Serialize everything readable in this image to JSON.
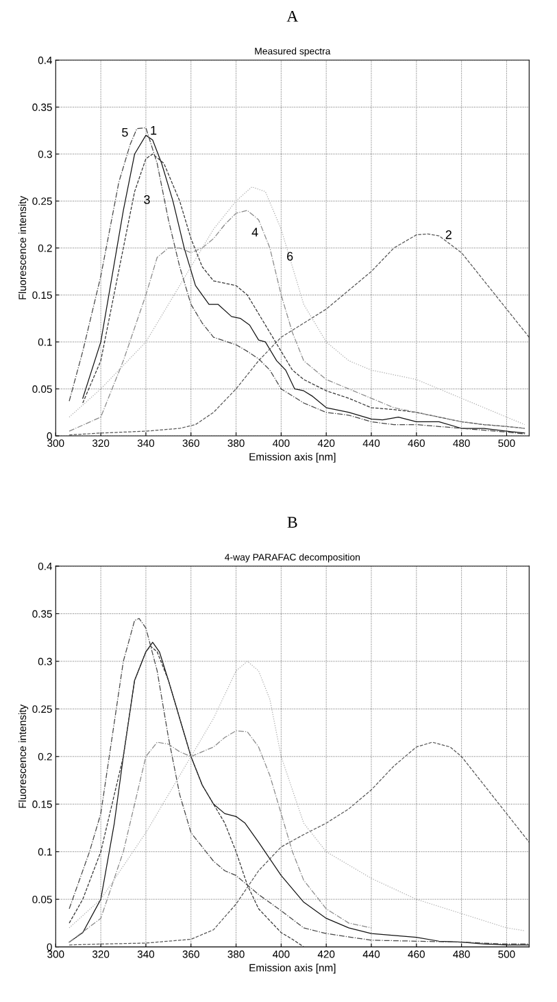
{
  "chart_data": [
    {
      "type": "line",
      "title": "Measured spectra",
      "xlabel": "Emission axis [nm]",
      "ylabel": "Fluorescence intensity",
      "xlim": [
        300,
        510
      ],
      "ylim": [
        0,
        0.4
      ],
      "xticks": [
        300,
        320,
        340,
        360,
        380,
        400,
        420,
        440,
        460,
        480,
        500
      ],
      "yticks": [
        0,
        0.05,
        0.1,
        0.15,
        0.2,
        0.25,
        0.3,
        0.35,
        0.4
      ],
      "grid": true,
      "annotations": [
        "A"
      ],
      "series": [
        {
          "name": "1",
          "color": "#111111",
          "line_style": "solid",
          "x": [
            312,
            320,
            330,
            335,
            340,
            343,
            347,
            352,
            357,
            362,
            365,
            368,
            372,
            378,
            382,
            386,
            390,
            393,
            398,
            402,
            406,
            410,
            414,
            420,
            430,
            440,
            445,
            452,
            460,
            470,
            480,
            490,
            500,
            508
          ],
          "values": [
            0.04,
            0.1,
            0.24,
            0.3,
            0.32,
            0.315,
            0.29,
            0.25,
            0.2,
            0.16,
            0.15,
            0.14,
            0.14,
            0.127,
            0.125,
            0.118,
            0.102,
            0.1,
            0.08,
            0.07,
            0.05,
            0.048,
            0.042,
            0.03,
            0.025,
            0.018,
            0.017,
            0.02,
            0.015,
            0.015,
            0.008,
            0.008,
            0.005,
            0.003
          ]
        },
        {
          "name": "2",
          "color": "#555555",
          "line_style": "dashed",
          "x": [
            306,
            320,
            340,
            355,
            362,
            370,
            380,
            390,
            400,
            410,
            420,
            430,
            440,
            450,
            460,
            465,
            470,
            480,
            490,
            500,
            510
          ],
          "values": [
            0.001,
            0.003,
            0.005,
            0.008,
            0.012,
            0.025,
            0.05,
            0.08,
            0.105,
            0.12,
            0.135,
            0.155,
            0.175,
            0.2,
            0.214,
            0.215,
            0.213,
            0.195,
            0.165,
            0.135,
            0.105
          ]
        },
        {
          "name": "3",
          "color": "#333333",
          "line_style": "dashed",
          "x": [
            312,
            320,
            330,
            335,
            340,
            343,
            348,
            355,
            360,
            365,
            370,
            380,
            385,
            390,
            400,
            405,
            410,
            420,
            430,
            440,
            450,
            460,
            470,
            480,
            490,
            500,
            508
          ],
          "values": [
            0.035,
            0.08,
            0.2,
            0.26,
            0.295,
            0.3,
            0.29,
            0.25,
            0.21,
            0.18,
            0.165,
            0.16,
            0.15,
            0.13,
            0.09,
            0.07,
            0.06,
            0.048,
            0.04,
            0.03,
            0.028,
            0.025,
            0.02,
            0.015,
            0.012,
            0.01,
            0.008
          ]
        },
        {
          "name": "4",
          "color": "#888888",
          "line_style": "dashdot",
          "x": [
            306,
            320,
            330,
            340,
            345,
            350,
            355,
            360,
            365,
            370,
            375,
            380,
            385,
            390,
            395,
            400,
            405,
            410,
            420,
            430,
            440,
            450,
            460,
            470,
            480,
            490,
            500,
            508
          ],
          "values": [
            0.005,
            0.02,
            0.08,
            0.15,
            0.19,
            0.2,
            0.2,
            0.195,
            0.2,
            0.21,
            0.225,
            0.237,
            0.24,
            0.23,
            0.2,
            0.15,
            0.11,
            0.08,
            0.06,
            0.05,
            0.04,
            0.03,
            0.025,
            0.02,
            0.015,
            0.012,
            0.01,
            0.008
          ]
        },
        {
          "name": "5",
          "color": "#444444",
          "line_style": "dashdot",
          "x": [
            306,
            312,
            320,
            328,
            333,
            336,
            340,
            345,
            350,
            355,
            360,
            365,
            370,
            380,
            385,
            390,
            395,
            400,
            410,
            420,
            430,
            440,
            450,
            460,
            470,
            480,
            490,
            500,
            508
          ],
          "values": [
            0.037,
            0.09,
            0.17,
            0.27,
            0.31,
            0.327,
            0.328,
            0.29,
            0.23,
            0.18,
            0.14,
            0.12,
            0.105,
            0.097,
            0.09,
            0.082,
            0.07,
            0.05,
            0.035,
            0.025,
            0.022,
            0.015,
            0.012,
            0.012,
            0.01,
            0.008,
            0.006,
            0.004,
            0.002
          ]
        },
        {
          "name": "6",
          "color": "#aaaaaa",
          "line_style": "dotted",
          "x": [
            306,
            320,
            340,
            350,
            360,
            370,
            380,
            387,
            393,
            400,
            405,
            410,
            420,
            430,
            440,
            450,
            460,
            470,
            480,
            490,
            500,
            508
          ],
          "values": [
            0.02,
            0.05,
            0.1,
            0.14,
            0.18,
            0.22,
            0.25,
            0.265,
            0.26,
            0.22,
            0.18,
            0.14,
            0.1,
            0.08,
            0.07,
            0.065,
            0.06,
            0.05,
            0.04,
            0.03,
            0.02,
            0.012
          ]
        }
      ]
    },
    {
      "type": "line",
      "title": "4-way PARAFAC decomposition",
      "xlabel": "Emission axis [nm]",
      "ylabel": "Fluorescence intensity",
      "xlim": [
        300,
        510
      ],
      "ylim": [
        0,
        0.4
      ],
      "xticks": [
        300,
        320,
        340,
        360,
        380,
        400,
        420,
        440,
        460,
        480,
        500
      ],
      "yticks": [
        0,
        0.05,
        0.1,
        0.15,
        0.2,
        0.25,
        0.3,
        0.35,
        0.4
      ],
      "grid": true,
      "annotations": [
        "B"
      ],
      "series": [
        {
          "color": "#111111",
          "line_style": "solid",
          "x": [
            306,
            312,
            320,
            326,
            330,
            335,
            340,
            343,
            346,
            350,
            355,
            360,
            365,
            370,
            375,
            380,
            384,
            390,
            400,
            410,
            420,
            430,
            440,
            450,
            460,
            470,
            480,
            490,
            500,
            510
          ],
          "values": [
            0.005,
            0.015,
            0.05,
            0.13,
            0.2,
            0.28,
            0.31,
            0.32,
            0.31,
            0.28,
            0.24,
            0.2,
            0.17,
            0.15,
            0.14,
            0.137,
            0.13,
            0.11,
            0.075,
            0.047,
            0.03,
            0.02,
            0.014,
            0.012,
            0.01,
            0.006,
            0.005,
            0.003,
            0.002,
            0.002
          ]
        },
        {
          "color": "#555555",
          "line_style": "dashed",
          "x": [
            306,
            320,
            340,
            360,
            370,
            380,
            390,
            400,
            410,
            420,
            430,
            440,
            450,
            460,
            467,
            475,
            480,
            490,
            500,
            510
          ],
          "values": [
            0.002,
            0.003,
            0.004,
            0.008,
            0.018,
            0.045,
            0.08,
            0.105,
            0.118,
            0.13,
            0.145,
            0.165,
            0.19,
            0.21,
            0.215,
            0.21,
            0.2,
            0.17,
            0.14,
            0.11
          ]
        },
        {
          "color": "#333333",
          "line_style": "dashed",
          "x": [
            306,
            312,
            320,
            330,
            335,
            340,
            342,
            345,
            350,
            355,
            360,
            365,
            370,
            375,
            380,
            385,
            390,
            400,
            405,
            410,
            412
          ],
          "values": [
            0.025,
            0.05,
            0.1,
            0.2,
            0.28,
            0.31,
            0.316,
            0.31,
            0.28,
            0.24,
            0.2,
            0.17,
            0.15,
            0.13,
            0.1,
            0.065,
            0.04,
            0.015,
            0.008,
            0.0,
            0.0
          ]
        },
        {
          "color": "#888888",
          "line_style": "dashdot",
          "x": [
            306,
            320,
            330,
            340,
            345,
            350,
            355,
            360,
            365,
            370,
            375,
            380,
            385,
            390,
            395,
            400,
            405,
            410,
            420,
            430,
            440
          ],
          "values": [
            0.005,
            0.03,
            0.1,
            0.2,
            0.215,
            0.213,
            0.205,
            0.2,
            0.205,
            0.21,
            0.22,
            0.227,
            0.226,
            0.21,
            0.18,
            0.14,
            0.1,
            0.07,
            0.04,
            0.025,
            0.02
          ]
        },
        {
          "color": "#444444",
          "line_style": "dashdot",
          "x": [
            306,
            315,
            320,
            325,
            330,
            335,
            337,
            340,
            345,
            350,
            355,
            360,
            370,
            375,
            380,
            385,
            390,
            400,
            410,
            420,
            440,
            460,
            480,
            500,
            510
          ],
          "values": [
            0.04,
            0.1,
            0.14,
            0.22,
            0.3,
            0.343,
            0.345,
            0.335,
            0.29,
            0.22,
            0.16,
            0.12,
            0.09,
            0.08,
            0.075,
            0.065,
            0.055,
            0.038,
            0.02,
            0.014,
            0.007,
            0.006,
            0.005,
            0.003,
            0.003
          ]
        },
        {
          "color": "#aaaaaa",
          "line_style": "dotted",
          "x": [
            306,
            320,
            340,
            360,
            370,
            380,
            385,
            390,
            395,
            400,
            410,
            420,
            440,
            460,
            480,
            500,
            508
          ],
          "values": [
            0.02,
            0.05,
            0.12,
            0.2,
            0.24,
            0.29,
            0.3,
            0.29,
            0.26,
            0.2,
            0.13,
            0.1,
            0.072,
            0.05,
            0.035,
            0.02,
            0.017
          ]
        }
      ]
    }
  ]
}
